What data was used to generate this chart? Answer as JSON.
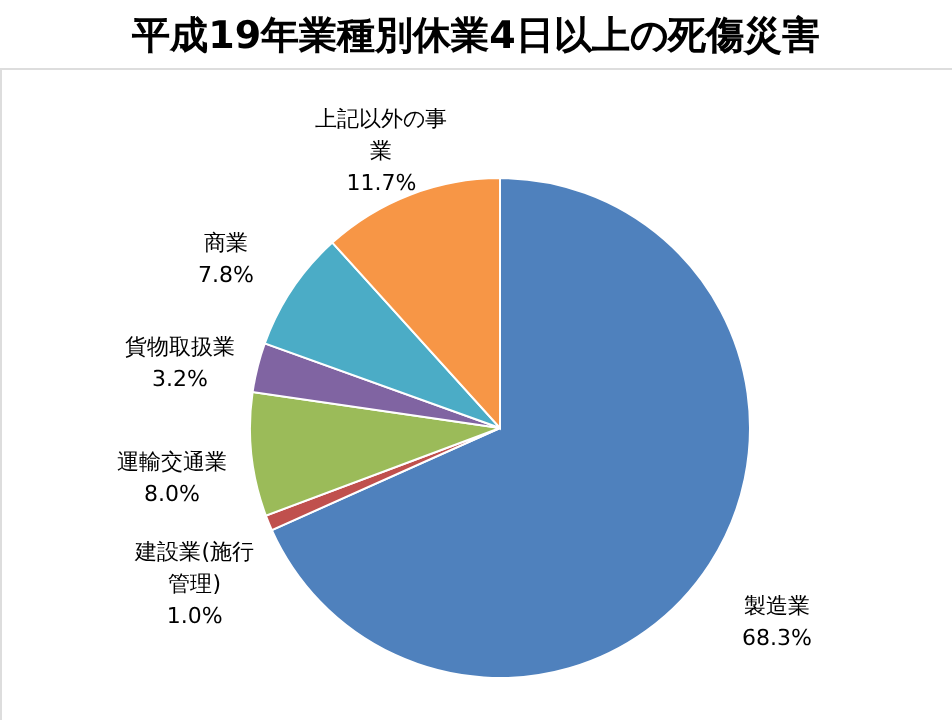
{
  "chart_data": {
    "type": "pie",
    "title": "平成19年業種別休業4日以上の死傷災害",
    "categories": [
      "製造業",
      "建設業(施行管理)",
      "運輸交通業",
      "貨物取扱業",
      "商業",
      "上記以外の事業"
    ],
    "values": [
      68.3,
      1.0,
      8.0,
      3.2,
      7.8,
      11.7
    ],
    "value_labels": [
      "68.3%",
      "1.0%",
      "8.0%",
      "3.2%",
      "7.8%",
      "11.7%"
    ],
    "colors": [
      "#4f81bd",
      "#c0504d",
      "#9bbb59",
      "#8064a2",
      "#4bacc6",
      "#f79646"
    ],
    "legend": false
  }
}
